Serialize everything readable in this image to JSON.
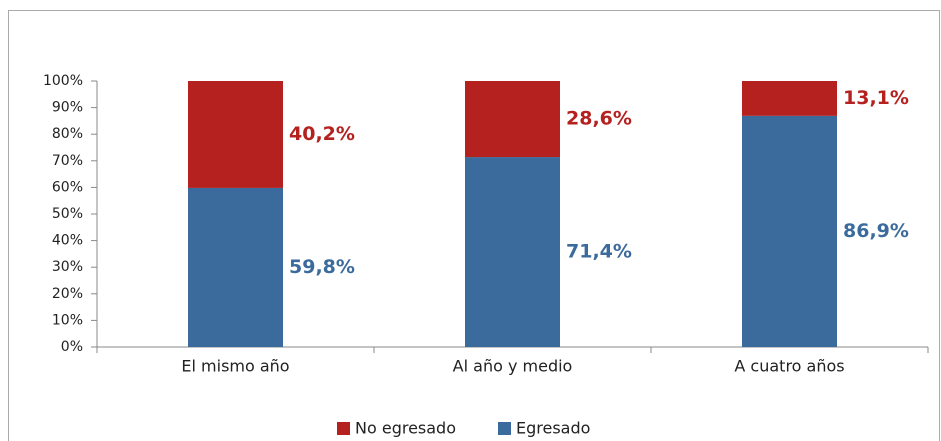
{
  "chart_data": {
    "type": "stacked_bar",
    "categories": [
      "El mismo año",
      "Al año y medio",
      "A cuatro años"
    ],
    "series": [
      {
        "name": "Egresado",
        "color": "#3b6a9c",
        "values": [
          59.8,
          71.4,
          86.9
        ],
        "value_labels": [
          "59,8%",
          "71,4%",
          "86,9%"
        ]
      },
      {
        "name": "No egresado",
        "color": "#b5211f",
        "values": [
          40.2,
          28.6,
          13.1
        ],
        "value_labels": [
          "40,2%",
          "28,6%",
          "13,1%"
        ]
      }
    ],
    "ylim": [
      0,
      100
    ],
    "yticks": [
      {
        "value": 0,
        "label": "0%"
      },
      {
        "value": 10,
        "label": "10%"
      },
      {
        "value": 20,
        "label": "20%"
      },
      {
        "value": 30,
        "label": "30%"
      },
      {
        "value": 40,
        "label": "40%"
      },
      {
        "value": 50,
        "label": "50%"
      },
      {
        "value": 60,
        "label": "60%"
      },
      {
        "value": 70,
        "label": "70%"
      },
      {
        "value": 80,
        "label": "80%"
      },
      {
        "value": 90,
        "label": "90%"
      },
      {
        "value": 100,
        "label": "100%"
      }
    ],
    "legend": "bottom"
  }
}
